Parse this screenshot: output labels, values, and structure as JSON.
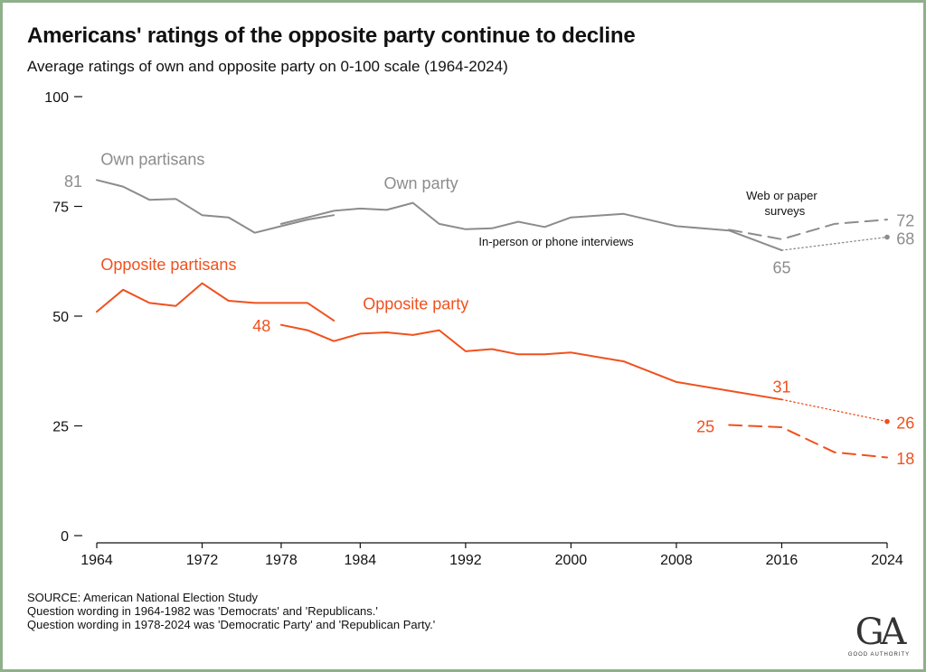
{
  "title": "Americans' ratings of the opposite party continue to decline",
  "subtitle": "Average ratings of own and opposite party on 0-100 scale (1964-2024)",
  "source_lines": [
    "SOURCE: American National Election Study",
    "Question wording in 1964-1982 was 'Democrats' and 'Republicans.'",
    "Question wording in 1978-2024 was 'Democratic Party' and 'Republican Party.'"
  ],
  "logo": {
    "mark": "GA",
    "text": "GOOD AUTHORITY"
  },
  "colors": {
    "own": "#8c8c8c",
    "opposite": "#f0511e",
    "axis": "#111111"
  },
  "chart_data": {
    "type": "line",
    "title": "Americans' ratings of the opposite party continue to decline",
    "subtitle": "Average ratings of own and opposite party on 0-100 scale (1964-2024)",
    "xlim": [
      1964,
      2024
    ],
    "ylim": [
      0,
      100
    ],
    "x_ticks": [
      1964,
      1972,
      1978,
      1984,
      1992,
      2000,
      2008,
      2016,
      2024
    ],
    "y_ticks": [
      0,
      25,
      50,
      75,
      100
    ],
    "grid": false,
    "series": [
      {
        "key": "own_partisans",
        "color": "own",
        "style": "solid",
        "points": [
          [
            1964,
            81
          ],
          [
            1966,
            79.5
          ],
          [
            1968,
            76.5
          ],
          [
            1970,
            76.7
          ],
          [
            1972,
            73
          ],
          [
            1974,
            72.5
          ],
          [
            1976,
            69
          ],
          [
            1978,
            70.5
          ],
          [
            1980,
            72
          ],
          [
            1982,
            73
          ]
        ]
      },
      {
        "key": "own_party_phone",
        "color": "own",
        "style": "solid",
        "points": [
          [
            1978,
            71
          ],
          [
            1980,
            72.5
          ],
          [
            1982,
            74
          ],
          [
            1984,
            74.5
          ],
          [
            1986,
            74.2
          ],
          [
            1988,
            75.8
          ],
          [
            1990,
            71
          ],
          [
            1992,
            69.8
          ],
          [
            1994,
            70
          ],
          [
            1996,
            71.5
          ],
          [
            1998,
            70.3
          ],
          [
            2000,
            72.5
          ],
          [
            2004,
            73.3
          ],
          [
            2008,
            70.5
          ],
          [
            2012,
            69.5
          ],
          [
            2016,
            65
          ]
        ]
      },
      {
        "key": "own_party_web",
        "color": "own",
        "style": "dashed",
        "points": [
          [
            2012,
            69.7
          ],
          [
            2016,
            67.5
          ],
          [
            2020,
            71
          ],
          [
            2024,
            72
          ]
        ]
      },
      {
        "key": "own_party_projection",
        "color": "own",
        "style": "dotted",
        "points": [
          [
            2016,
            65
          ],
          [
            2024,
            68
          ]
        ],
        "end_marker": true
      },
      {
        "key": "opposite_partisans",
        "color": "opposite",
        "style": "solid",
        "points": [
          [
            1964,
            51
          ],
          [
            1966,
            56
          ],
          [
            1968,
            53
          ],
          [
            1970,
            52.3
          ],
          [
            1972,
            57.5
          ],
          [
            1974,
            53.5
          ],
          [
            1976,
            53
          ],
          [
            1978,
            53
          ],
          [
            1980,
            53
          ],
          [
            1982,
            49
          ]
        ]
      },
      {
        "key": "opposite_party_phone",
        "color": "opposite",
        "style": "solid",
        "points": [
          [
            1978,
            48
          ],
          [
            1980,
            46.8
          ],
          [
            1982,
            44.3
          ],
          [
            1984,
            46
          ],
          [
            1986,
            46.3
          ],
          [
            1988,
            45.7
          ],
          [
            1990,
            46.8
          ],
          [
            1992,
            42
          ],
          [
            1994,
            42.5
          ],
          [
            1996,
            41.3
          ],
          [
            1998,
            41.3
          ],
          [
            2000,
            41.7
          ],
          [
            2004,
            39.7
          ],
          [
            2008,
            35
          ],
          [
            2012,
            33
          ],
          [
            2016,
            31
          ]
        ]
      },
      {
        "key": "opposite_party_web",
        "color": "opposite",
        "style": "dashed",
        "points": [
          [
            2012,
            25.2
          ],
          [
            2016,
            24.7
          ],
          [
            2020,
            19
          ],
          [
            2024,
            17.8
          ]
        ]
      },
      {
        "key": "opposite_party_projection",
        "color": "opposite",
        "style": "dotted",
        "points": [
          [
            2016,
            31
          ],
          [
            2024,
            26
          ]
        ],
        "end_marker": true
      }
    ],
    "series_labels": [
      {
        "text": "Own partisans",
        "color": "own",
        "x": 1964.3,
        "y": 84.5,
        "anchor": "start",
        "size": 18
      },
      {
        "text": "Own party",
        "color": "own",
        "x": 1985.8,
        "y": 79,
        "anchor": "start",
        "size": 18
      },
      {
        "text": "Opposite partisans",
        "color": "opposite",
        "x": 1964.3,
        "y": 60.5,
        "anchor": "start",
        "size": 18
      },
      {
        "text": "Opposite party",
        "color": "opposite",
        "x": 1984.2,
        "y": 51.5,
        "anchor": "start",
        "size": 18
      },
      {
        "text": "In-person or phone interviews",
        "color": "axis",
        "x": 1993,
        "y": 66,
        "anchor": "start",
        "size": 13
      },
      {
        "text": "Web or paper",
        "color": "axis",
        "x": 2013.3,
        "y": 76.5,
        "anchor": "start",
        "size": 13
      },
      {
        "text": "surveys",
        "color": "axis",
        "x": 2014.7,
        "y": 73,
        "anchor": "start",
        "size": 13
      }
    ],
    "value_labels": [
      {
        "text": "81",
        "color": "own",
        "x": 1962.9,
        "y": 79.4,
        "anchor": "end",
        "size": 18
      },
      {
        "text": "65",
        "color": "own",
        "x": 2016,
        "y": 59.8,
        "anchor": "middle",
        "size": 18
      },
      {
        "text": "72",
        "color": "own",
        "x": 2024.7,
        "y": 70.5,
        "anchor": "start",
        "size": 18
      },
      {
        "text": "68",
        "color": "own",
        "x": 2024.7,
        "y": 66.4,
        "anchor": "start",
        "size": 18
      },
      {
        "text": "48",
        "color": "opposite",
        "x": 1977.2,
        "y": 46.5,
        "anchor": "end",
        "size": 18
      },
      {
        "text": "31",
        "color": "opposite",
        "x": 2016,
        "y": 32.6,
        "anchor": "middle",
        "size": 18
      },
      {
        "text": "26",
        "color": "opposite",
        "x": 2024.7,
        "y": 24.4,
        "anchor": "start",
        "size": 18
      },
      {
        "text": "25",
        "color": "opposite",
        "x": 2010.9,
        "y": 23.6,
        "anchor": "end",
        "size": 18
      },
      {
        "text": "18",
        "color": "opposite",
        "x": 2024.7,
        "y": 16.3,
        "anchor": "start",
        "size": 18
      }
    ]
  }
}
